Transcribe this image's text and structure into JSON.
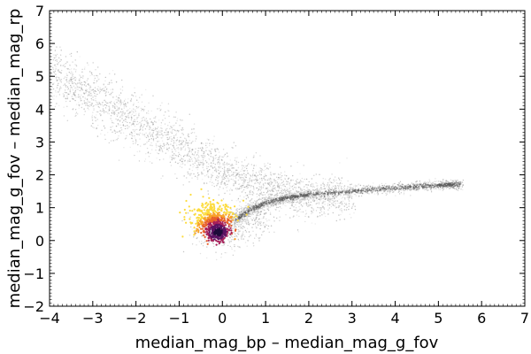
{
  "chart_data": {
    "type": "scatter",
    "title": "",
    "xlabel": "median_mag_bp – median_mag_g_fov",
    "ylabel": "median_mag_g_fov – median_mag_rp",
    "xlim": [
      -4,
      7
    ],
    "ylim": [
      -2,
      7
    ],
    "x_ticks": [
      -4,
      -3,
      -2,
      -1,
      0,
      1,
      2,
      3,
      4,
      5,
      6,
      7
    ],
    "y_ticks": [
      -2,
      -1,
      0,
      1,
      2,
      3,
      4,
      5,
      6,
      7
    ],
    "x_tick_labels": [
      "−4",
      "−3",
      "−2",
      "−1",
      "0",
      "1",
      "2",
      "3",
      "4",
      "5",
      "6",
      "7"
    ],
    "y_tick_labels": [
      "−2",
      "−1",
      "0",
      "1",
      "2",
      "3",
      "4",
      "5",
      "6",
      "7"
    ],
    "grid": false,
    "legend": "none",
    "series": [
      {
        "role": "background density (gray)",
        "color": "#9a9a9a",
        "features": [
          {
            "kind": "upper-left diagonal band",
            "points": [
              [
                -4.0,
                5.2
              ],
              [
                -3.0,
                4.4
              ],
              [
                -2.0,
                3.6
              ],
              [
                -1.0,
                2.9
              ],
              [
                0.0,
                2.1
              ],
              [
                1.0,
                1.6
              ],
              [
                2.0,
                1.35
              ],
              [
                3.0,
                1.3
              ]
            ]
          },
          {
            "kind": "main sequence ridge",
            "points": [
              [
                0.3,
                0.6
              ],
              [
                0.6,
                0.9
              ],
              [
                1.0,
                1.15
              ],
              [
                1.5,
                1.3
              ],
              [
                2.0,
                1.4
              ],
              [
                3.0,
                1.5
              ],
              [
                4.0,
                1.6
              ],
              [
                5.0,
                1.68
              ],
              [
                5.5,
                1.72
              ]
            ]
          },
          {
            "kind": "lower cluster",
            "points": [
              [
                -0.5,
                0.3
              ],
              [
                0.0,
                0.2
              ],
              [
                0.5,
                0.5
              ],
              [
                1.0,
                0.8
              ]
            ]
          }
        ]
      },
      {
        "role": "highlighted sources (colour-coded)",
        "colors": [
          "#fcdb3c",
          "#f8a12a",
          "#e8612a",
          "#a8205a",
          "#5c1263",
          "#1e0b3a"
        ],
        "features": [
          {
            "kind": "clump",
            "center": [
              -0.2,
              0.6
            ],
            "spread": [
              0.45,
              0.5
            ]
          },
          {
            "kind": "dense core",
            "center": [
              -0.1,
              0.25
            ],
            "spread": [
              0.2,
              0.25
            ]
          }
        ]
      }
    ]
  }
}
